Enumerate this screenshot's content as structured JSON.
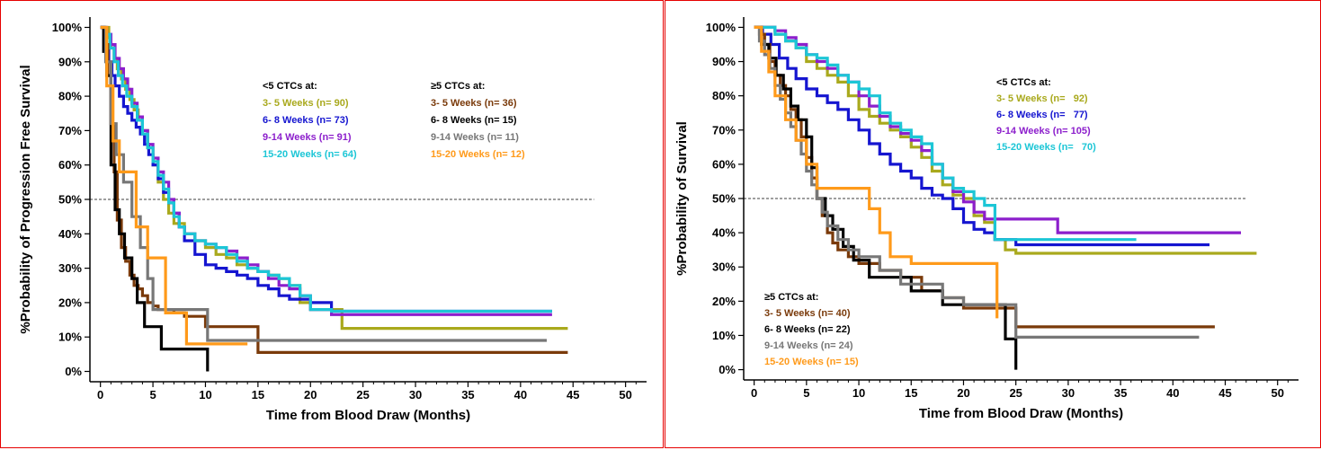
{
  "chart_data": [
    {
      "type": "line",
      "subtype": "kaplan-meier step",
      "xlabel": "Time from Blood Draw (Months)",
      "ylabel": "%Probability of Progression Free Survival",
      "xlim": [
        -1,
        52
      ],
      "ylim": [
        -3,
        103
      ],
      "xticks": [
        "0",
        "5",
        "10",
        "15",
        "20",
        "25",
        "30",
        "35",
        "40",
        "45",
        "50"
      ],
      "yticks": [
        "0%",
        "10%",
        "20%",
        "30%",
        "40%",
        "50%",
        "60%",
        "70%",
        "80%",
        "90%",
        "100%"
      ],
      "reference_line": 50,
      "legend_groups": [
        {
          "title": "<5 CTCs at:",
          "placement": "upper-center"
        },
        {
          "title": "≥5 CTCs at:",
          "placement": "upper-right"
        }
      ],
      "series": [
        {
          "name": "3- 5 Weeks (n= 90)",
          "group": 0,
          "color": "#a9a91d",
          "x": [
            0,
            0.5,
            0.8,
            1,
            1.3,
            1.6,
            2,
            2.4,
            2.8,
            3.2,
            3.6,
            4,
            4.5,
            5,
            5.5,
            6,
            6.5,
            7,
            8,
            9,
            10,
            11,
            12,
            13,
            14,
            15,
            16,
            17,
            18,
            19,
            20,
            22,
            23,
            44.5
          ],
          "y": [
            100,
            100,
            97,
            94,
            91,
            88,
            85,
            82,
            79,
            76,
            73,
            70,
            65,
            60,
            55,
            50,
            46,
            43,
            40,
            38,
            36,
            34,
            33,
            31,
            30,
            29,
            28,
            27,
            25,
            20,
            18,
            18,
            12.5,
            12.5
          ]
        },
        {
          "name": "6- 8 Weeks (n= 73)",
          "group": 0,
          "color": "#1515d0",
          "x": [
            0,
            0.4,
            0.8,
            1.1,
            1.4,
            1.8,
            2.2,
            2.6,
            3,
            3.4,
            3.8,
            4.2,
            4.6,
            5,
            5.5,
            6,
            6.5,
            7,
            7.5,
            8,
            9,
            10,
            11,
            12,
            13,
            14,
            15,
            16,
            17,
            18,
            19,
            20,
            21,
            22,
            43
          ],
          "y": [
            100,
            95,
            90,
            86,
            83,
            80,
            77,
            75,
            73,
            71,
            69,
            66,
            63,
            60,
            56,
            52,
            49,
            46,
            42,
            38,
            34,
            31,
            30,
            29,
            28,
            27,
            25,
            24,
            22,
            21,
            21,
            20,
            20,
            17.5,
            17.5
          ]
        },
        {
          "name": "9-14 Weeks (n= 91)",
          "group": 0,
          "color": "#8c1fcc",
          "x": [
            0,
            0.6,
            1,
            1.4,
            1.8,
            2.2,
            2.6,
            3,
            3.5,
            4,
            4.5,
            5,
            5.5,
            6,
            6.5,
            7,
            7.5,
            8,
            9,
            10,
            11,
            12,
            13,
            14,
            15,
            16,
            17,
            18,
            19,
            20,
            22,
            43
          ],
          "y": [
            100,
            98,
            95,
            91,
            88,
            85,
            82,
            78,
            74,
            70,
            66,
            62,
            58,
            55,
            50,
            46,
            42,
            40,
            38,
            37,
            36,
            35,
            33,
            31,
            29,
            27,
            25,
            24,
            22,
            18,
            16.5,
            16.5
          ]
        },
        {
          "name": "15-20 Weeks (n= 64)",
          "group": 0,
          "color": "#1cc6d6",
          "x": [
            0,
            0.5,
            0.9,
            1.3,
            1.7,
            2.1,
            2.5,
            3,
            3.5,
            4,
            4.5,
            5,
            5.5,
            6,
            6.5,
            7,
            7.5,
            8,
            9,
            10,
            11,
            12,
            13,
            14,
            15,
            16,
            17,
            18,
            19,
            20,
            22,
            43
          ],
          "y": [
            100,
            98,
            94,
            90,
            86,
            83,
            80,
            77,
            73,
            69,
            65,
            61,
            57,
            53,
            49,
            45,
            42,
            40,
            38,
            37,
            36,
            34,
            32,
            30,
            29,
            28,
            27,
            25,
            22,
            18,
            17.5,
            17.5
          ]
        },
        {
          "name": "3- 5 Weeks (n= 36)",
          "group": 1,
          "color": "#7a3a0a",
          "x": [
            0,
            0.4,
            0.7,
            1,
            1.3,
            1.6,
            2,
            2.4,
            2.8,
            3.2,
            3.6,
            4,
            4.5,
            5,
            5.5,
            6,
            7,
            8,
            9,
            10,
            15,
            44.5
          ],
          "y": [
            100,
            95,
            86,
            72,
            58,
            44,
            36,
            32,
            28,
            25,
            24,
            22,
            20,
            19,
            18,
            18,
            17,
            16,
            16,
            13,
            5.5,
            5.5
          ]
        },
        {
          "name": "6- 8 Weeks (n= 15)",
          "group": 1,
          "color": "#000000",
          "x": [
            0,
            0.3,
            0.6,
            1,
            1.4,
            1.8,
            2.3,
            3,
            3.5,
            4.2,
            5.2,
            5.8,
            10.2,
            10.2
          ],
          "y": [
            100,
            93,
            86,
            60,
            47,
            40,
            33,
            27,
            20,
            13,
            13,
            6.5,
            6.5,
            0
          ]
        },
        {
          "name": "9-14 Weeks (n= 11)",
          "group": 1,
          "color": "#777777",
          "x": [
            0,
            0.5,
            1,
            1.5,
            2.2,
            3,
            3.8,
            4.5,
            5,
            10.2,
            42.5
          ],
          "y": [
            100,
            90,
            72,
            63,
            55,
            45,
            36,
            27,
            18,
            9,
            9
          ]
        },
        {
          "name": "15-20 Weeks (n= 12)",
          "group": 1,
          "color": "#ff9a1a",
          "x": [
            0,
            0.6,
            1.2,
            1.8,
            2.4,
            3.4,
            4.5,
            6.2,
            7.2,
            8.2,
            14
          ],
          "y": [
            100,
            83,
            67,
            58,
            58,
            42,
            33,
            17,
            17,
            8,
            8
          ]
        }
      ]
    },
    {
      "type": "line",
      "subtype": "kaplan-meier step",
      "xlabel": "Time from Blood Draw (Months)",
      "ylabel": "%Probability of Survival",
      "xlim": [
        -1,
        52
      ],
      "ylim": [
        -3,
        103
      ],
      "xticks": [
        "0",
        "5",
        "10",
        "15",
        "20",
        "25",
        "30",
        "35",
        "40",
        "45",
        "50"
      ],
      "yticks": [
        "0%",
        "10%",
        "20%",
        "30%",
        "40%",
        "50%",
        "60%",
        "70%",
        "80%",
        "90%",
        "100%"
      ],
      "reference_line": 50,
      "legend_groups": [
        {
          "title": "<5 CTCs at:",
          "placement": "upper-center-right"
        },
        {
          "title": "≥5 CTCs at:",
          "placement": "lower-left"
        }
      ],
      "series": [
        {
          "name": "3- 5 Weeks (n=   92)",
          "group": 0,
          "color": "#a9a91d",
          "x": [
            0,
            1,
            2,
            3,
            4,
            5,
            6,
            7,
            8,
            9,
            10,
            11,
            12,
            13,
            14,
            15,
            16,
            17,
            18,
            19,
            20,
            21,
            22,
            23,
            24,
            25,
            48
          ],
          "y": [
            100,
            100,
            98,
            96,
            94,
            90,
            88,
            86,
            84,
            80,
            76,
            74,
            72,
            70,
            68,
            65,
            62,
            58,
            54,
            51,
            50,
            45,
            43,
            38,
            35,
            34,
            34
          ]
        },
        {
          "name": "6- 8 Weeks (n=   77)",
          "group": 0,
          "color": "#1515d0",
          "x": [
            0,
            0.8,
            1.6,
            2.4,
            3.2,
            4,
            5,
            6,
            7,
            8,
            9,
            10,
            11,
            12,
            13,
            14,
            15,
            16,
            17,
            18,
            19,
            20,
            21,
            22,
            23,
            24,
            25,
            43.5
          ],
          "y": [
            100,
            98,
            95,
            91,
            88,
            85,
            82,
            80,
            78,
            76,
            73,
            70,
            66,
            63,
            60,
            58,
            56,
            53,
            51,
            50,
            47,
            43,
            41,
            40,
            38,
            38,
            36.5,
            36.5
          ]
        },
        {
          "name": "9-14 Weeks (n= 105)",
          "group": 0,
          "color": "#8c1fcc",
          "x": [
            0,
            1,
            2,
            3,
            4,
            5,
            6,
            7,
            8,
            9,
            10,
            11,
            12,
            13,
            14,
            15,
            16,
            17,
            18,
            19,
            20,
            21,
            22,
            25,
            29,
            46.5
          ],
          "y": [
            100,
            100,
            99,
            97,
            95,
            92,
            90,
            88,
            86,
            84,
            80,
            77,
            74,
            71,
            69,
            67,
            64,
            60,
            56,
            52,
            49,
            46,
            44,
            44,
            40,
            40
          ]
        },
        {
          "name": "15-20 Weeks (n=   70)",
          "group": 0,
          "color": "#1cc6d6",
          "x": [
            0,
            1,
            2,
            3,
            4,
            5,
            6,
            7,
            8,
            9,
            10,
            11,
            12,
            13,
            14,
            15,
            16,
            17,
            18,
            19,
            20,
            21,
            22,
            23,
            36.5
          ],
          "y": [
            100,
            100,
            98,
            96,
            94,
            92,
            91,
            89,
            86,
            84,
            82,
            80,
            75,
            72,
            70,
            68,
            66,
            60,
            56,
            53,
            52,
            50,
            48,
            38,
            38
          ]
        },
        {
          "name": "3- 5 Weeks (n= 40)",
          "group": 1,
          "color": "#7a3a0a",
          "x": [
            0,
            0.5,
            1,
            1.5,
            2,
            2.5,
            3,
            3.5,
            4,
            4.5,
            5,
            5.5,
            6,
            6.5,
            7,
            7.5,
            8,
            9,
            10,
            12,
            14,
            16,
            18,
            20,
            23,
            25,
            44
          ],
          "y": [
            100,
            98,
            95,
            90,
            86,
            83,
            80,
            76,
            73,
            68,
            62,
            56,
            50,
            45,
            40,
            37,
            35,
            33,
            31,
            29,
            27,
            23,
            21,
            18,
            18,
            12.5,
            12.5
          ]
        },
        {
          "name": "6- 8 Weeks (n= 22)",
          "group": 1,
          "color": "#000000",
          "x": [
            0,
            0.7,
            1.4,
            2.1,
            2.8,
            3.5,
            4.2,
            5,
            5.5,
            6,
            6.8,
            7.5,
            8.5,
            9.5,
            11,
            13,
            15,
            18,
            21,
            24,
            25,
            25
          ],
          "y": [
            100,
            95,
            91,
            86,
            82,
            77,
            73,
            68,
            59,
            50,
            45,
            41,
            36,
            32,
            27,
            27,
            23,
            19,
            19,
            9,
            9,
            0
          ]
        },
        {
          "name": "9-14 Weeks (n= 24)",
          "group": 1,
          "color": "#777777",
          "x": [
            0,
            0.5,
            1,
            1.5,
            2,
            2.5,
            3,
            3.5,
            4,
            4.5,
            5,
            5.5,
            6,
            6.5,
            7,
            8,
            9,
            10,
            12,
            14,
            16,
            18,
            20,
            22,
            25,
            42.5
          ],
          "y": [
            100,
            96,
            92,
            88,
            83,
            79,
            75,
            71,
            67,
            63,
            58,
            54,
            50,
            46,
            42,
            38,
            35,
            33,
            29,
            25,
            25,
            21,
            19,
            19,
            9.5,
            9.5
          ]
        },
        {
          "name": "15-20 Weeks (n= 15)",
          "group": 1,
          "color": "#ff9a1a",
          "x": [
            0,
            0.7,
            1.4,
            2,
            3,
            4,
            5,
            6,
            7,
            8,
            9,
            11,
            12,
            13,
            15,
            17,
            20,
            23,
            23.2
          ],
          "y": [
            100,
            93,
            87,
            80,
            73,
            67,
            60,
            53,
            53,
            53,
            53,
            47,
            40,
            33,
            31,
            31,
            31,
            31,
            15
          ]
        }
      ]
    }
  ]
}
